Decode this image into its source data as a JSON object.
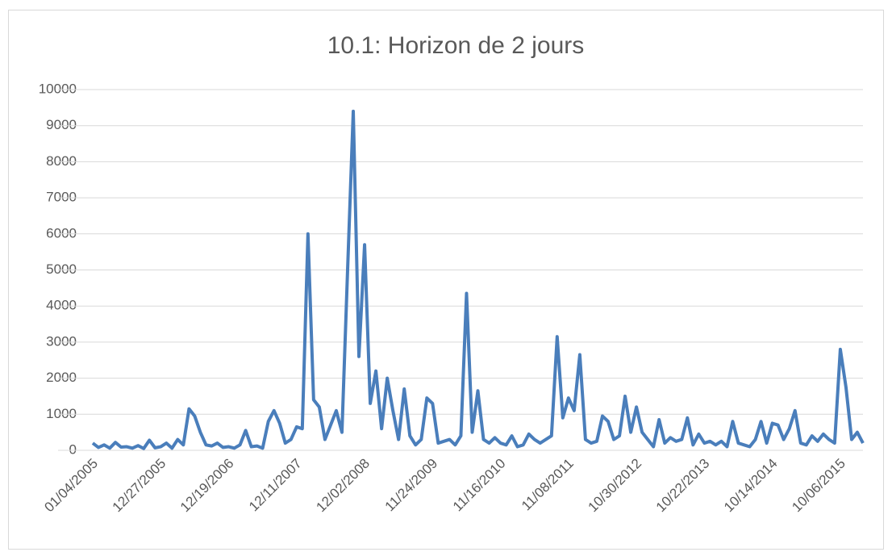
{
  "chart_data": {
    "type": "line",
    "title": "10.1: Horizon de 2 jours",
    "categories": [
      "01/04/2005",
      null,
      null,
      null,
      null,
      null,
      null,
      null,
      null,
      null,
      null,
      null,
      "12/27/2005",
      null,
      null,
      null,
      null,
      null,
      null,
      null,
      null,
      null,
      null,
      null,
      "12/19/2006",
      null,
      null,
      null,
      null,
      null,
      null,
      null,
      null,
      null,
      null,
      null,
      "12/11/2007",
      null,
      null,
      null,
      null,
      null,
      null,
      null,
      null,
      null,
      null,
      null,
      "12/02/2008",
      null,
      null,
      null,
      null,
      null,
      null,
      null,
      null,
      null,
      null,
      null,
      "11/24/2009",
      null,
      null,
      null,
      null,
      null,
      null,
      null,
      null,
      null,
      null,
      null,
      "11/16/2010",
      null,
      null,
      null,
      null,
      null,
      null,
      null,
      null,
      null,
      null,
      null,
      "11/08/2011",
      null,
      null,
      null,
      null,
      null,
      null,
      null,
      null,
      null,
      null,
      null,
      "10/30/2012",
      null,
      null,
      null,
      null,
      null,
      null,
      null,
      null,
      null,
      null,
      null,
      "10/22/2013",
      null,
      null,
      null,
      null,
      null,
      null,
      null,
      null,
      null,
      null,
      null,
      "10/14/2014",
      null,
      null,
      null,
      null,
      null,
      null,
      null,
      null,
      null,
      null,
      null,
      "10/06/2015",
      null,
      null,
      null,
      null
    ],
    "series": [
      {
        "name": "Horizon de 2 jours",
        "color": "#4a7ebb",
        "values": [
          200,
          80,
          150,
          60,
          220,
          90,
          100,
          60,
          130,
          50,
          280,
          70,
          100,
          200,
          60,
          300,
          150,
          1150,
          950,
          500,
          150,
          120,
          200,
          80,
          100,
          60,
          150,
          550,
          100,
          120,
          60,
          800,
          1100,
          750,
          200,
          300,
          650,
          600,
          6000,
          1400,
          1200,
          300,
          700,
          1100,
          500,
          5000,
          9400,
          2600,
          5700,
          1300,
          2200,
          600,
          2000,
          1100,
          300,
          1700,
          400,
          150,
          300,
          1450,
          1300,
          200,
          250,
          300,
          150,
          400,
          4350,
          500,
          1650,
          300,
          200,
          350,
          200,
          150,
          400,
          100,
          150,
          450,
          300,
          200,
          300,
          400,
          3150,
          900,
          1450,
          1100,
          2650,
          300,
          200,
          250,
          950,
          800,
          300,
          400,
          1500,
          500,
          1200,
          500,
          300,
          100,
          850,
          200,
          350,
          250,
          300,
          900,
          150,
          450,
          200,
          250,
          150,
          250,
          100,
          800,
          200,
          150,
          100,
          300,
          800,
          200,
          750,
          700,
          300,
          600,
          1100,
          200,
          150,
          400,
          250,
          450,
          300,
          200,
          2800,
          1750,
          300,
          500,
          200
        ]
      }
    ],
    "ylim": [
      0,
      10000
    ],
    "yticks": [
      0,
      1000,
      2000,
      3000,
      4000,
      5000,
      6000,
      7000,
      8000,
      9000,
      10000
    ],
    "grid": true
  }
}
